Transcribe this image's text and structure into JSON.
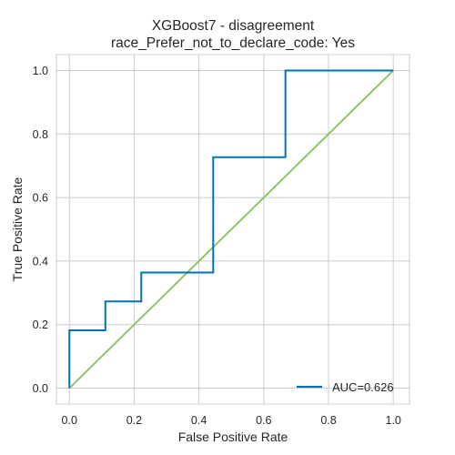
{
  "chart_data": {
    "type": "line",
    "title": "XGBoost7 - disagreement",
    "subtitle": "race_Prefer_not_to_declare_code: Yes",
    "xlabel": "False Positive Rate",
    "ylabel": "True Positive Rate",
    "xlim": [
      -0.04,
      1.05
    ],
    "ylim": [
      -0.05,
      1.05
    ],
    "xticks": [
      0.0,
      0.2,
      0.4,
      0.6,
      0.8,
      1.0
    ],
    "xtick_labels": [
      "0.0",
      "0.2",
      "0.4",
      "0.6",
      "0.8",
      "1.0"
    ],
    "yticks": [
      0.0,
      0.2,
      0.4,
      0.6,
      0.8,
      1.0
    ],
    "ytick_labels": [
      "0.0",
      "0.2",
      "0.4",
      "0.6",
      "0.8",
      "1.0"
    ],
    "grid": true,
    "legend_position": "lower-right",
    "series": [
      {
        "name": "AUC=0.626",
        "color": "#0072b2",
        "x": [
          0.0,
          0.0,
          0.111,
          0.111,
          0.222,
          0.222,
          0.444,
          0.444,
          0.667,
          0.667,
          1.0
        ],
        "y": [
          0.0,
          0.182,
          0.182,
          0.273,
          0.273,
          0.364,
          0.364,
          0.727,
          0.727,
          1.0,
          1.0
        ]
      },
      {
        "color": "#8fc36b",
        "x": [
          0.0,
          1.0
        ],
        "y": [
          0.0,
          1.0
        ]
      }
    ]
  }
}
